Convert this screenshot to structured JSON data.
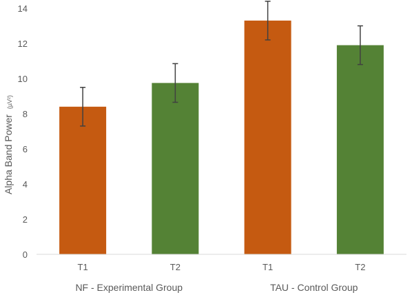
{
  "chart_data": {
    "type": "bar",
    "title": "",
    "ylabel": "Alpha Band Power",
    "ylabel_unit": "(µV²)",
    "ylim": [
      0,
      14
    ],
    "yticks": [
      0,
      2,
      4,
      6,
      8,
      10,
      12,
      14
    ],
    "grid": false,
    "groups": [
      {
        "label": "NF - Experimental Group",
        "categories": [
          "T1",
          "T2"
        ]
      },
      {
        "label": "TAU - Control Group",
        "categories": [
          "T1",
          "T2"
        ]
      }
    ],
    "bars": [
      {
        "group": "NF - Experimental Group",
        "category": "T1",
        "value": 8.4,
        "error": 1.1,
        "color": "#c55a11"
      },
      {
        "group": "NF - Experimental Group",
        "category": "T2",
        "value": 9.75,
        "error": 1.1,
        "color": "#548235"
      },
      {
        "group": "TAU - Control Group",
        "category": "T1",
        "value": 13.3,
        "error": 1.1,
        "color": "#c55a11"
      },
      {
        "group": "TAU - Control Group",
        "category": "T2",
        "value": 11.9,
        "error": 1.1,
        "color": "#548235"
      }
    ]
  }
}
